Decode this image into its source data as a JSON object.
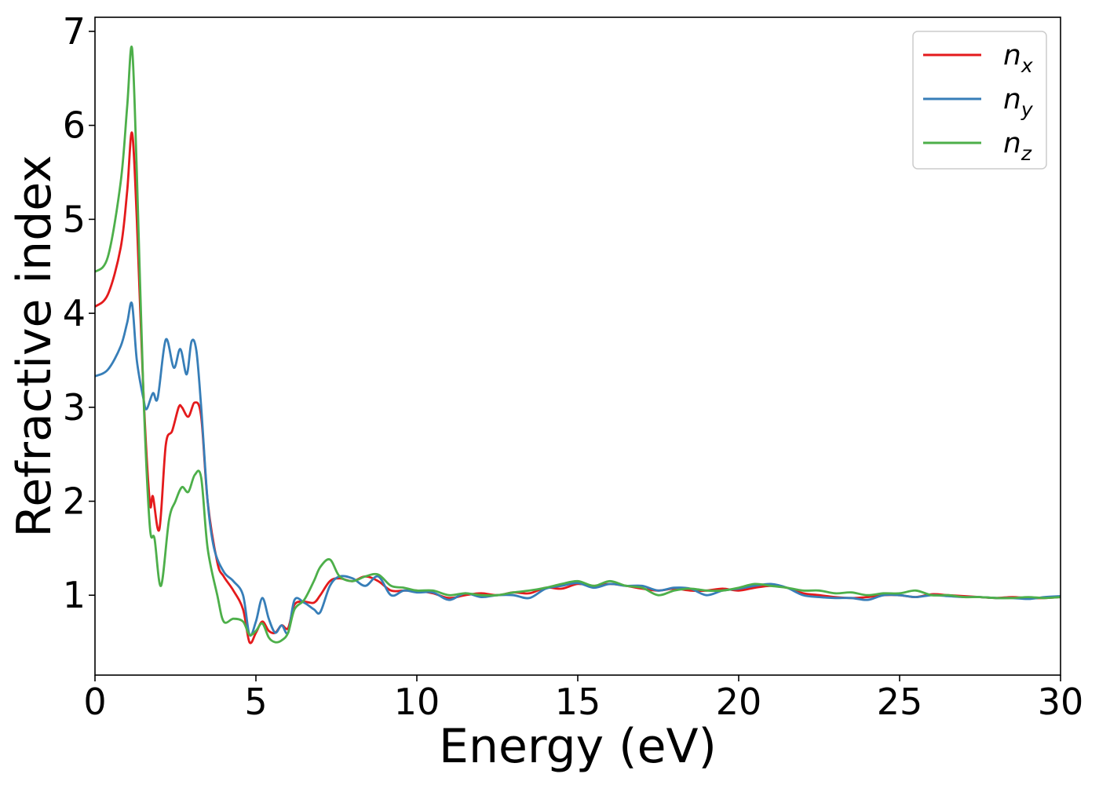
{
  "chart_data": {
    "type": "line",
    "xlabel": "Energy (eV)",
    "ylabel": "Refractive index",
    "xlim": [
      0,
      30
    ],
    "ylim": [
      0.15,
      7.15
    ],
    "xticks": [
      "0",
      "5",
      "10",
      "15",
      "20",
      "25",
      "30"
    ],
    "yticks": [
      "1",
      "2",
      "3",
      "4",
      "5",
      "6",
      "7"
    ],
    "grid": false,
    "legend_position": "top-right",
    "series": [
      {
        "name": "n",
        "subscript": "x",
        "color": "#e41a1c",
        "x": [
          0,
          0.4,
          0.8,
          1.0,
          1.15,
          1.3,
          1.5,
          1.7,
          1.8,
          2.0,
          2.2,
          2.4,
          2.6,
          2.7,
          2.9,
          3.1,
          3.3,
          3.5,
          3.8,
          4.0,
          4.3,
          4.6,
          4.8,
          5.0,
          5.2,
          5.4,
          5.6,
          5.8,
          6.0,
          6.2,
          6.5,
          6.8,
          7.0,
          7.3,
          7.6,
          8.0,
          8.4,
          8.8,
          9.2,
          9.6,
          10.0,
          10.5,
          11.0,
          11.5,
          12.0,
          12.5,
          13.0,
          13.5,
          14.0,
          14.5,
          15.0,
          15.5,
          16.0,
          16.5,
          17.0,
          17.5,
          18.0,
          18.5,
          19.0,
          19.5,
          20.0,
          20.5,
          21.0,
          21.5,
          22.0,
          22.5,
          23.0,
          23.5,
          24.0,
          24.5,
          25.0,
          25.5,
          26.0,
          26.5,
          27.0,
          27.5,
          28.0,
          28.5,
          29.0,
          29.5,
          30.0
        ],
        "values": [
          4.07,
          4.2,
          4.7,
          5.3,
          5.92,
          5.0,
          3.2,
          2.0,
          2.05,
          1.7,
          2.6,
          2.75,
          3.0,
          3.0,
          2.9,
          3.05,
          2.9,
          2.0,
          1.35,
          1.2,
          1.05,
          0.85,
          0.5,
          0.6,
          0.72,
          0.62,
          0.6,
          0.68,
          0.65,
          0.9,
          0.93,
          0.92,
          1.0,
          1.15,
          1.18,
          1.15,
          1.2,
          1.15,
          1.05,
          1.05,
          1.05,
          1.02,
          0.97,
          1.0,
          1.02,
          1.0,
          1.03,
          1.02,
          1.08,
          1.07,
          1.12,
          1.1,
          1.12,
          1.1,
          1.07,
          1.05,
          1.07,
          1.05,
          1.05,
          1.07,
          1.05,
          1.08,
          1.1,
          1.08,
          1.02,
          1.0,
          0.98,
          0.97,
          0.98,
          1.0,
          1.0,
          0.98,
          1.01,
          1.0,
          0.99,
          0.98,
          0.97,
          0.98,
          0.97,
          0.97,
          0.98
        ]
      },
      {
        "name": "n",
        "subscript": "y",
        "color": "#377eb8",
        "x": [
          0,
          0.4,
          0.8,
          1.0,
          1.15,
          1.3,
          1.5,
          1.6,
          1.8,
          1.95,
          2.2,
          2.45,
          2.65,
          2.85,
          3.0,
          3.15,
          3.3,
          3.5,
          3.7,
          4.0,
          4.3,
          4.6,
          4.8,
          5.0,
          5.2,
          5.4,
          5.6,
          5.8,
          6.0,
          6.2,
          6.5,
          6.8,
          7.0,
          7.3,
          7.6,
          8.0,
          8.4,
          8.8,
          9.2,
          9.6,
          10.0,
          10.5,
          11.0,
          11.5,
          12.0,
          12.5,
          13.0,
          13.5,
          14.0,
          14.5,
          15.0,
          15.5,
          16.0,
          16.5,
          17.0,
          17.5,
          18.0,
          18.5,
          19.0,
          19.5,
          20.0,
          20.5,
          21.0,
          21.5,
          22.0,
          22.5,
          23.0,
          23.5,
          24.0,
          24.5,
          25.0,
          25.5,
          26.0,
          26.5,
          27.0,
          27.5,
          28.0,
          28.5,
          29.0,
          29.5,
          30.0
        ],
        "values": [
          3.33,
          3.4,
          3.65,
          3.9,
          4.1,
          3.5,
          3.1,
          2.98,
          3.15,
          3.1,
          3.72,
          3.42,
          3.62,
          3.35,
          3.7,
          3.6,
          3.0,
          2.0,
          1.5,
          1.25,
          1.15,
          1.0,
          0.58,
          0.72,
          0.97,
          0.75,
          0.6,
          0.68,
          0.6,
          0.95,
          0.92,
          0.85,
          0.82,
          1.1,
          1.2,
          1.18,
          1.1,
          1.2,
          1.0,
          1.05,
          1.03,
          1.03,
          0.95,
          1.02,
          0.98,
          1.0,
          1.0,
          0.97,
          1.07,
          1.1,
          1.13,
          1.08,
          1.12,
          1.1,
          1.1,
          1.05,
          1.08,
          1.07,
          1.0,
          1.05,
          1.07,
          1.1,
          1.12,
          1.08,
          1.0,
          0.98,
          0.97,
          0.97,
          0.95,
          1.0,
          1.0,
          0.98,
          1.0,
          0.99,
          0.98,
          0.98,
          0.97,
          0.97,
          0.96,
          0.98,
          0.99
        ]
      },
      {
        "name": "n",
        "subscript": "z",
        "color": "#4daf4a",
        "x": [
          0,
          0.4,
          0.8,
          1.0,
          1.15,
          1.3,
          1.5,
          1.7,
          1.85,
          2.05,
          2.3,
          2.5,
          2.7,
          2.9,
          3.1,
          3.3,
          3.5,
          3.8,
          4.0,
          4.3,
          4.6,
          4.8,
          5.0,
          5.2,
          5.4,
          5.6,
          5.8,
          6.0,
          6.2,
          6.5,
          6.8,
          7.0,
          7.3,
          7.6,
          8.0,
          8.4,
          8.8,
          9.2,
          9.6,
          10.0,
          10.5,
          11.0,
          11.5,
          12.0,
          12.5,
          13.0,
          13.5,
          14.0,
          14.5,
          15.0,
          15.5,
          16.0,
          16.5,
          17.0,
          17.5,
          18.0,
          18.5,
          19.0,
          19.5,
          20.0,
          20.5,
          21.0,
          21.5,
          22.0,
          22.5,
          23.0,
          23.5,
          24.0,
          24.5,
          25.0,
          25.5,
          26.0,
          26.5,
          27.0,
          27.5,
          28.0,
          28.5,
          29.0,
          29.5,
          30.0
        ],
        "values": [
          4.44,
          4.6,
          5.4,
          6.2,
          6.82,
          5.5,
          3.2,
          1.75,
          1.6,
          1.1,
          1.8,
          2.0,
          2.15,
          2.1,
          2.28,
          2.25,
          1.5,
          1.0,
          0.72,
          0.75,
          0.72,
          0.58,
          0.62,
          0.7,
          0.55,
          0.5,
          0.52,
          0.6,
          0.85,
          0.95,
          1.15,
          1.3,
          1.38,
          1.2,
          1.15,
          1.2,
          1.22,
          1.1,
          1.08,
          1.05,
          1.05,
          1.0,
          1.02,
          1.0,
          1.0,
          1.03,
          1.05,
          1.08,
          1.12,
          1.15,
          1.1,
          1.15,
          1.1,
          1.08,
          1.0,
          1.05,
          1.07,
          1.05,
          1.05,
          1.08,
          1.12,
          1.1,
          1.08,
          1.05,
          1.05,
          1.02,
          1.03,
          1.0,
          1.02,
          1.02,
          1.05,
          1.0,
          1.0,
          0.98,
          0.98,
          0.97,
          0.97,
          0.98,
          0.97,
          0.98
        ]
      }
    ]
  }
}
